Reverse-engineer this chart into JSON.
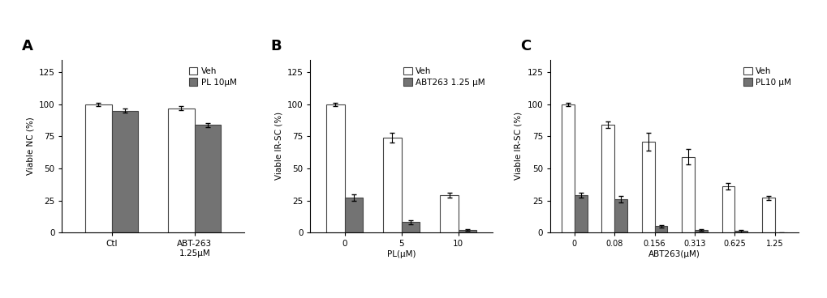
{
  "panel_A": {
    "panel_label": "A",
    "ylabel": "Viable NC (%)",
    "ylim": [
      0,
      135
    ],
    "yticks": [
      0,
      25,
      50,
      75,
      100,
      125
    ],
    "xtick_labels": [
      "Ctl",
      "ABT-263\n1.25μM"
    ],
    "veh_values": [
      100,
      97
    ],
    "pl_values": [
      95,
      84
    ],
    "veh_errors": [
      1.0,
      1.5
    ],
    "pl_errors": [
      1.5,
      1.5
    ],
    "legend_labels": [
      "Veh",
      "PL 10μM"
    ],
    "bar_width": 0.32,
    "veh_color": "#ffffff",
    "pl_color": "#737373",
    "edgecolor": "#444444"
  },
  "panel_B": {
    "panel_label": "B",
    "ylabel": "Viable IR-SC (%)",
    "xlabel": "PL(μM)",
    "ylim": [
      0,
      135
    ],
    "yticks": [
      0,
      25,
      50,
      75,
      100,
      125
    ],
    "xtick_labels": [
      "0",
      "5",
      "10"
    ],
    "veh_values": [
      100,
      74,
      29
    ],
    "abt_values": [
      27,
      8,
      2
    ],
    "veh_errors": [
      1.0,
      4.0,
      2.0
    ],
    "abt_errors": [
      2.5,
      1.5,
      0.5
    ],
    "legend_labels": [
      "Veh",
      "ABT263 1.25 μM"
    ],
    "bar_width": 0.32,
    "veh_color": "#ffffff",
    "abt_color": "#737373",
    "edgecolor": "#444444"
  },
  "panel_C": {
    "panel_label": "C",
    "ylabel": "Viable IR-SC (%)",
    "xlabel": "ABT263(μM)",
    "ylim": [
      0,
      135
    ],
    "yticks": [
      0,
      25,
      50,
      75,
      100,
      125
    ],
    "xtick_labels": [
      "0",
      "0.08",
      "0.156",
      "0.313",
      "0.625",
      "1.25"
    ],
    "veh_values": [
      100,
      84,
      71,
      59,
      36,
      27
    ],
    "pl_values": [
      29,
      26,
      5,
      2,
      1,
      0
    ],
    "veh_errors": [
      1.0,
      2.5,
      7.0,
      6.0,
      2.5,
      1.5
    ],
    "pl_errors": [
      2.0,
      2.5,
      1.0,
      0.5,
      1.0,
      0.3
    ],
    "legend_labels": [
      "Veh",
      "PL10 μM"
    ],
    "bar_width": 0.32,
    "veh_color": "#ffffff",
    "pl_color": "#737373",
    "edgecolor": "#444444"
  },
  "background_color": "#ffffff",
  "fontsize": 7.5
}
